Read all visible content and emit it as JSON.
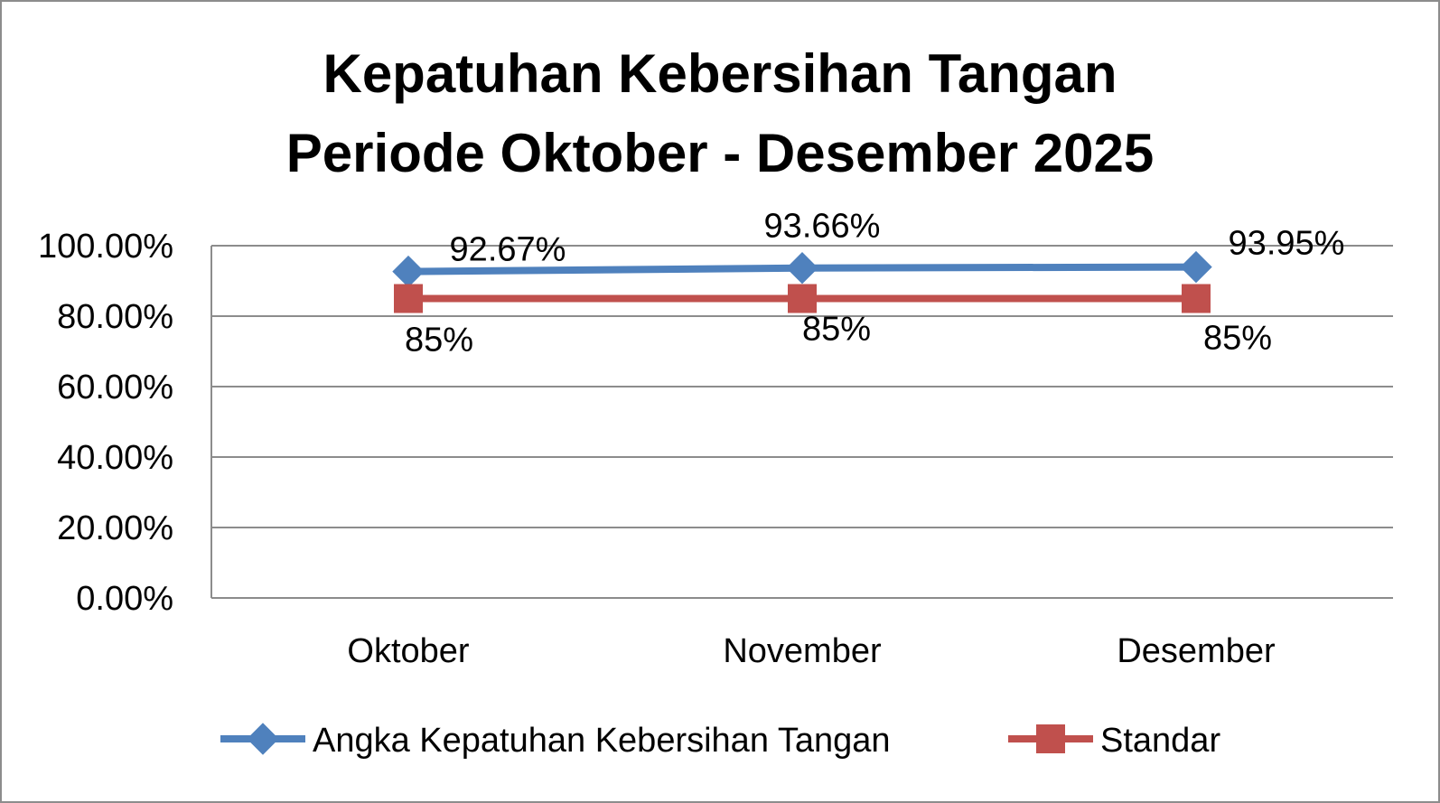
{
  "chart_data": {
    "type": "line",
    "title": [
      "Kepatuhan Kebersihan Tangan",
      "Periode Oktober - Desember 2025"
    ],
    "categories": [
      "Oktober",
      "November",
      "Desember"
    ],
    "series": [
      {
        "name": "Angka Kepatuhan Kebersihan Tangan",
        "values": [
          92.67,
          93.66,
          93.95
        ],
        "labels": [
          "92.67%",
          "93.66%",
          "93.95%"
        ],
        "color": "#4f81bd",
        "marker": "diamond"
      },
      {
        "name": "Standar",
        "values": [
          85,
          85,
          85
        ],
        "labels": [
          "85%",
          "85%",
          "85%"
        ],
        "color": "#c0504d",
        "marker": "square"
      }
    ],
    "yticks": [
      "0.00%",
      "20.00%",
      "40.00%",
      "60.00%",
      "80.00%",
      "100.00%"
    ],
    "ylim": [
      0,
      100
    ],
    "grid": true,
    "legend": "bottom"
  }
}
